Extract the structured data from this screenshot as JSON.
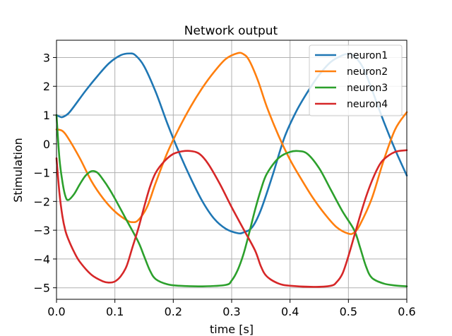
{
  "chart_data": {
    "type": "line",
    "title": "Network output",
    "xlabel": "time [s]",
    "ylabel": "Stimulation",
    "xlim": [
      0,
      0.6
    ],
    "ylim": [
      -5.4,
      3.6
    ],
    "xticks": [
      0.0,
      0.1,
      0.2,
      0.3,
      0.4,
      0.5,
      0.6
    ],
    "xtick_labels": [
      "0.0",
      "0.1",
      "0.2",
      "0.3",
      "0.4",
      "0.5",
      "0.6"
    ],
    "yticks": [
      3,
      2,
      1,
      0,
      -1,
      -2,
      -3,
      -4,
      -5
    ],
    "ytick_labels": [
      "3",
      "2",
      "1",
      "0",
      "−1",
      "−2",
      "−3",
      "−4",
      "−5"
    ],
    "grid": true,
    "legend_position": "top-right",
    "series": [
      {
        "name": "neuron1",
        "color": "#1f77b4",
        "points": [
          [
            0.0,
            1.0
          ],
          [
            0.005,
            0.95
          ],
          [
            0.01,
            0.93
          ],
          [
            0.02,
            1.05
          ],
          [
            0.03,
            1.3
          ],
          [
            0.05,
            1.85
          ],
          [
            0.07,
            2.35
          ],
          [
            0.09,
            2.8
          ],
          [
            0.11,
            3.08
          ],
          [
            0.125,
            3.14
          ],
          [
            0.135,
            3.08
          ],
          [
            0.15,
            2.7
          ],
          [
            0.17,
            1.8
          ],
          [
            0.19,
            0.7
          ],
          [
            0.21,
            -0.3
          ],
          [
            0.23,
            -1.2
          ],
          [
            0.25,
            -2.0
          ],
          [
            0.27,
            -2.6
          ],
          [
            0.29,
            -2.95
          ],
          [
            0.31,
            -3.1
          ],
          [
            0.32,
            -3.08
          ],
          [
            0.335,
            -2.9
          ],
          [
            0.35,
            -2.3
          ],
          [
            0.37,
            -1.1
          ],
          [
            0.39,
            0.2
          ],
          [
            0.41,
            1.1
          ],
          [
            0.43,
            1.8
          ],
          [
            0.45,
            2.4
          ],
          [
            0.47,
            2.85
          ],
          [
            0.49,
            3.08
          ],
          [
            0.5,
            3.12
          ],
          [
            0.51,
            3.05
          ],
          [
            0.525,
            2.65
          ],
          [
            0.54,
            1.9
          ],
          [
            0.56,
            0.8
          ],
          [
            0.58,
            -0.2
          ],
          [
            0.6,
            -1.1
          ]
        ]
      },
      {
        "name": "neuron2",
        "color": "#ff7f0e",
        "points": [
          [
            0.0,
            0.5
          ],
          [
            0.01,
            0.45
          ],
          [
            0.02,
            0.2
          ],
          [
            0.04,
            -0.5
          ],
          [
            0.06,
            -1.3
          ],
          [
            0.08,
            -1.9
          ],
          [
            0.1,
            -2.35
          ],
          [
            0.12,
            -2.65
          ],
          [
            0.13,
            -2.72
          ],
          [
            0.14,
            -2.65
          ],
          [
            0.155,
            -2.2
          ],
          [
            0.17,
            -1.35
          ],
          [
            0.19,
            -0.3
          ],
          [
            0.21,
            0.55
          ],
          [
            0.23,
            1.3
          ],
          [
            0.25,
            1.95
          ],
          [
            0.27,
            2.5
          ],
          [
            0.29,
            2.95
          ],
          [
            0.31,
            3.15
          ],
          [
            0.32,
            3.12
          ],
          [
            0.33,
            2.9
          ],
          [
            0.345,
            2.2
          ],
          [
            0.36,
            1.3
          ],
          [
            0.38,
            0.3
          ],
          [
            0.4,
            -0.55
          ],
          [
            0.42,
            -1.25
          ],
          [
            0.44,
            -1.9
          ],
          [
            0.46,
            -2.45
          ],
          [
            0.48,
            -2.9
          ],
          [
            0.5,
            -3.12
          ],
          [
            0.51,
            -3.08
          ],
          [
            0.52,
            -2.8
          ],
          [
            0.54,
            -1.9
          ],
          [
            0.56,
            -0.6
          ],
          [
            0.58,
            0.5
          ],
          [
            0.6,
            1.1
          ]
        ]
      },
      {
        "name": "neuron3",
        "color": "#2ca02c",
        "points": [
          [
            0.0,
            1.0
          ],
          [
            0.005,
            -0.5
          ],
          [
            0.01,
            -1.3
          ],
          [
            0.015,
            -1.8
          ],
          [
            0.02,
            -1.95
          ],
          [
            0.03,
            -1.75
          ],
          [
            0.04,
            -1.4
          ],
          [
            0.05,
            -1.1
          ],
          [
            0.06,
            -0.95
          ],
          [
            0.07,
            -1.0
          ],
          [
            0.08,
            -1.25
          ],
          [
            0.09,
            -1.55
          ],
          [
            0.1,
            -1.9
          ],
          [
            0.12,
            -2.65
          ],
          [
            0.14,
            -3.4
          ],
          [
            0.15,
            -3.9
          ],
          [
            0.16,
            -4.4
          ],
          [
            0.17,
            -4.7
          ],
          [
            0.19,
            -4.88
          ],
          [
            0.21,
            -4.93
          ],
          [
            0.25,
            -4.95
          ],
          [
            0.29,
            -4.9
          ],
          [
            0.3,
            -4.75
          ],
          [
            0.31,
            -4.4
          ],
          [
            0.32,
            -3.85
          ],
          [
            0.33,
            -3.1
          ],
          [
            0.34,
            -2.3
          ],
          [
            0.35,
            -1.6
          ],
          [
            0.36,
            -1.05
          ],
          [
            0.38,
            -0.5
          ],
          [
            0.4,
            -0.28
          ],
          [
            0.415,
            -0.25
          ],
          [
            0.43,
            -0.35
          ],
          [
            0.45,
            -0.85
          ],
          [
            0.47,
            -1.6
          ],
          [
            0.49,
            -2.35
          ],
          [
            0.51,
            -3.0
          ],
          [
            0.52,
            -3.6
          ],
          [
            0.53,
            -4.25
          ],
          [
            0.54,
            -4.65
          ],
          [
            0.56,
            -4.85
          ],
          [
            0.58,
            -4.92
          ],
          [
            0.6,
            -4.95
          ]
        ]
      },
      {
        "name": "neuron4",
        "color": "#d62728",
        "points": [
          [
            0.0,
            -0.5
          ],
          [
            0.005,
            -1.7
          ],
          [
            0.01,
            -2.5
          ],
          [
            0.015,
            -3.0
          ],
          [
            0.02,
            -3.3
          ],
          [
            0.03,
            -3.75
          ],
          [
            0.04,
            -4.1
          ],
          [
            0.06,
            -4.55
          ],
          [
            0.08,
            -4.78
          ],
          [
            0.09,
            -4.82
          ],
          [
            0.1,
            -4.78
          ],
          [
            0.11,
            -4.6
          ],
          [
            0.12,
            -4.25
          ],
          [
            0.13,
            -3.6
          ],
          [
            0.14,
            -2.95
          ],
          [
            0.15,
            -2.2
          ],
          [
            0.16,
            -1.5
          ],
          [
            0.17,
            -1.0
          ],
          [
            0.185,
            -0.6
          ],
          [
            0.2,
            -0.35
          ],
          [
            0.215,
            -0.26
          ],
          [
            0.23,
            -0.25
          ],
          [
            0.245,
            -0.35
          ],
          [
            0.26,
            -0.7
          ],
          [
            0.28,
            -1.4
          ],
          [
            0.3,
            -2.2
          ],
          [
            0.32,
            -2.95
          ],
          [
            0.34,
            -3.7
          ],
          [
            0.35,
            -4.25
          ],
          [
            0.36,
            -4.6
          ],
          [
            0.38,
            -4.85
          ],
          [
            0.4,
            -4.93
          ],
          [
            0.44,
            -4.97
          ],
          [
            0.47,
            -4.93
          ],
          [
            0.48,
            -4.8
          ],
          [
            0.49,
            -4.5
          ],
          [
            0.5,
            -3.9
          ],
          [
            0.51,
            -3.2
          ],
          [
            0.52,
            -2.5
          ],
          [
            0.53,
            -1.85
          ],
          [
            0.54,
            -1.3
          ],
          [
            0.55,
            -0.85
          ],
          [
            0.56,
            -0.55
          ],
          [
            0.58,
            -0.28
          ],
          [
            0.6,
            -0.22
          ]
        ]
      }
    ]
  }
}
